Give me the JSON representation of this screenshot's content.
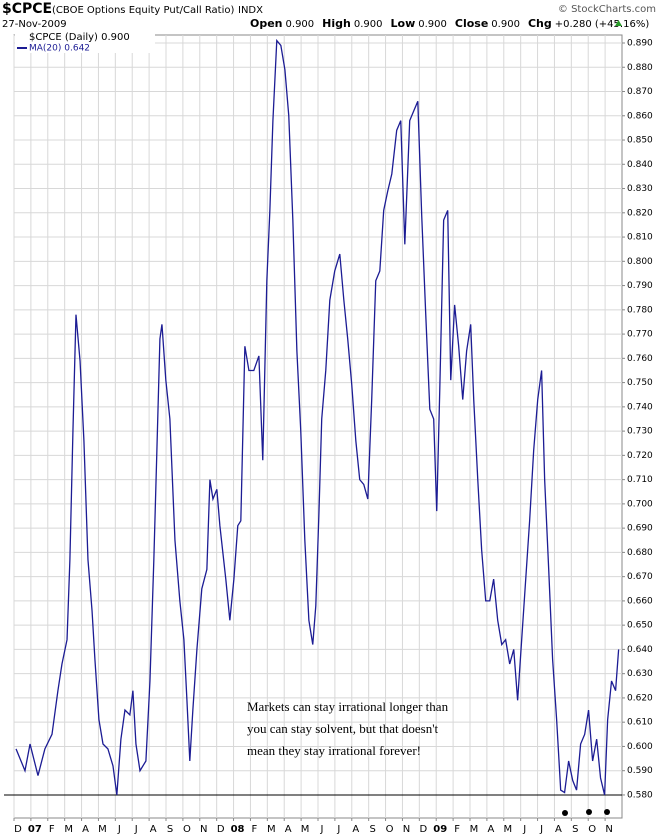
{
  "chart_data": {
    "type": "line",
    "symbol": "$CPCE",
    "title": "(CBOE Options Equity Put/Call Ratio)",
    "exchange": "INDX",
    "date": "27-Nov-2009",
    "source": "© StockCharts.com",
    "quote": [
      {
        "label": "Open",
        "value": "0.900"
      },
      {
        "label": "High",
        "value": "0.900"
      },
      {
        "label": "Low",
        "value": "0.900"
      },
      {
        "label": "Close",
        "value": "0.900"
      },
      {
        "label": "Chg",
        "value": "+0.280 (+45.16%)"
      }
    ],
    "price_label": "$CPCE (Daily) 0.900",
    "annotation": [
      "Markets can stay irrational longer than",
      "you can stay solvent, but that doesn't",
      "mean they stay irrational forever!"
    ],
    "reference_line": 0.58,
    "grid": true,
    "xlim": [
      0,
      36
    ],
    "xticks": [
      {
        "value": 0,
        "label": "D"
      },
      {
        "value": 1,
        "label": "07"
      },
      {
        "value": 2,
        "label": "F"
      },
      {
        "value": 3,
        "label": "M"
      },
      {
        "value": 4,
        "label": "A"
      },
      {
        "value": 5,
        "label": "M"
      },
      {
        "value": 6,
        "label": "J"
      },
      {
        "value": 7,
        "label": "J"
      },
      {
        "value": 8,
        "label": "A"
      },
      {
        "value": 9,
        "label": "S"
      },
      {
        "value": 10,
        "label": "O"
      },
      {
        "value": 11,
        "label": "N"
      },
      {
        "value": 12,
        "label": "D"
      },
      {
        "value": 13,
        "label": "08"
      },
      {
        "value": 14,
        "label": "F"
      },
      {
        "value": 15,
        "label": "M"
      },
      {
        "value": 16,
        "label": "A"
      },
      {
        "value": 17,
        "label": "M"
      },
      {
        "value": 18,
        "label": "J"
      },
      {
        "value": 19,
        "label": "J"
      },
      {
        "value": 20,
        "label": "A"
      },
      {
        "value": 21,
        "label": "S"
      },
      {
        "value": 22,
        "label": "O"
      },
      {
        "value": 23,
        "label": "N"
      },
      {
        "value": 24,
        "label": "D"
      },
      {
        "value": 25,
        "label": "09"
      },
      {
        "value": 26,
        "label": "F"
      },
      {
        "value": 27,
        "label": "M"
      },
      {
        "value": 28,
        "label": "A"
      },
      {
        "value": 29,
        "label": "M"
      },
      {
        "value": 30,
        "label": "J"
      },
      {
        "value": 31,
        "label": "J"
      },
      {
        "value": 32,
        "label": "A"
      },
      {
        "value": 33,
        "label": "S"
      },
      {
        "value": 34,
        "label": "O"
      },
      {
        "value": 35,
        "label": "N"
      }
    ],
    "ylim": [
      0.5705,
      0.8933
    ],
    "yticks": [
      {
        "value": 0.58,
        "label": "0.580"
      },
      {
        "value": 0.59,
        "label": "0.590"
      },
      {
        "value": 0.6,
        "label": "0.600"
      },
      {
        "value": 0.61,
        "label": "0.610"
      },
      {
        "value": 0.62,
        "label": "0.620"
      },
      {
        "value": 0.63,
        "label": "0.630"
      },
      {
        "value": 0.64,
        "label": "0.640"
      },
      {
        "value": 0.65,
        "label": "0.650"
      },
      {
        "value": 0.66,
        "label": "0.660"
      },
      {
        "value": 0.67,
        "label": "0.670"
      },
      {
        "value": 0.68,
        "label": "0.680"
      },
      {
        "value": 0.69,
        "label": "0.690"
      },
      {
        "value": 0.7,
        "label": "0.700"
      },
      {
        "value": 0.71,
        "label": "0.710"
      },
      {
        "value": 0.72,
        "label": "0.720"
      },
      {
        "value": 0.73,
        "label": "0.730"
      },
      {
        "value": 0.74,
        "label": "0.740"
      },
      {
        "value": 0.75,
        "label": "0.750"
      },
      {
        "value": 0.76,
        "label": "0.760"
      },
      {
        "value": 0.77,
        "label": "0.770"
      },
      {
        "value": 0.78,
        "label": "0.780"
      },
      {
        "value": 0.79,
        "label": "0.790"
      },
      {
        "value": 0.8,
        "label": "0.800"
      },
      {
        "value": 0.81,
        "label": "0.810"
      },
      {
        "value": 0.82,
        "label": "0.820"
      },
      {
        "value": 0.83,
        "label": "0.830"
      },
      {
        "value": 0.84,
        "label": "0.840"
      },
      {
        "value": 0.85,
        "label": "0.850"
      },
      {
        "value": 0.86,
        "label": "0.860"
      },
      {
        "value": 0.87,
        "label": "0.870"
      },
      {
        "value": 0.88,
        "label": "0.880"
      },
      {
        "value": 0.89,
        "label": "0.890"
      }
    ],
    "series": [
      {
        "name": "MA(20) 0.642",
        "color": "#1c1c94",
        "x": [
          0.12,
          0.65,
          0.95,
          1.42,
          1.83,
          2.25,
          2.6,
          2.84,
          3.14,
          3.31,
          3.49,
          3.67,
          3.91,
          4.14,
          4.38,
          4.62,
          4.79,
          5.03,
          5.27,
          5.56,
          5.86,
          6.09,
          6.33,
          6.57,
          6.86,
          7.04,
          7.22,
          7.46,
          7.81,
          8.05,
          8.28,
          8.46,
          8.64,
          8.76,
          8.99,
          9.23,
          9.53,
          9.82,
          10.06,
          10.24,
          10.41,
          10.59,
          10.83,
          11.12,
          11.42,
          11.6,
          11.78,
          12.01,
          12.19,
          12.54,
          12.78,
          13.02,
          13.25,
          13.43,
          13.67,
          13.91,
          14.2,
          14.5,
          14.73,
          14.97,
          15.15,
          15.33,
          15.56,
          15.8,
          16.04,
          16.27,
          16.51,
          16.75,
          16.98,
          17.22,
          17.46,
          17.69,
          17.87,
          18.05,
          18.22,
          18.46,
          18.7,
          18.99,
          19.29,
          19.53,
          19.76,
          20.0,
          20.24,
          20.47,
          20.71,
          20.95,
          21.18,
          21.42,
          21.66,
          21.89,
          22.13,
          22.37,
          22.66,
          22.9,
          23.14,
          23.43,
          23.67,
          23.91,
          24.14,
          24.38,
          24.62,
          24.85,
          25.03,
          25.21,
          25.44,
          25.68,
          25.86,
          26.09,
          26.33,
          26.57,
          26.8,
          27.04,
          27.22,
          27.46,
          27.69,
          27.93,
          28.17,
          28.4,
          28.64,
          28.88,
          29.11,
          29.35,
          29.59,
          29.82,
          30.06,
          30.3,
          30.53,
          30.77,
          31.01,
          31.24,
          31.42,
          31.66,
          31.89,
          32.13,
          32.37,
          32.6,
          32.84,
          33.08,
          33.31,
          33.55,
          33.79,
          34.02,
          34.26,
          34.5,
          34.73,
          34.97,
          35.15,
          35.38,
          35.62,
          35.8
        ],
        "values": [
          0.599,
          0.59,
          0.601,
          0.588,
          0.599,
          0.605,
          0.623,
          0.634,
          0.644,
          0.677,
          0.73,
          0.778,
          0.759,
          0.726,
          0.677,
          0.656,
          0.636,
          0.611,
          0.601,
          0.599,
          0.592,
          0.58,
          0.603,
          0.615,
          0.613,
          0.623,
          0.601,
          0.59,
          0.594,
          0.627,
          0.677,
          0.722,
          0.768,
          0.774,
          0.751,
          0.735,
          0.685,
          0.66,
          0.644,
          0.619,
          0.594,
          0.615,
          0.64,
          0.665,
          0.673,
          0.71,
          0.702,
          0.706,
          0.691,
          0.669,
          0.652,
          0.669,
          0.691,
          0.693,
          0.765,
          0.755,
          0.755,
          0.761,
          0.718,
          0.792,
          0.821,
          0.858,
          0.891,
          0.889,
          0.879,
          0.86,
          0.817,
          0.763,
          0.73,
          0.685,
          0.652,
          0.642,
          0.658,
          0.695,
          0.735,
          0.755,
          0.784,
          0.796,
          0.803,
          0.784,
          0.768,
          0.749,
          0.726,
          0.71,
          0.708,
          0.702,
          0.743,
          0.792,
          0.796,
          0.821,
          0.829,
          0.836,
          0.854,
          0.858,
          0.807,
          0.858,
          0.862,
          0.866,
          0.819,
          0.778,
          0.739,
          0.735,
          0.697,
          0.747,
          0.817,
          0.821,
          0.751,
          0.782,
          0.765,
          0.743,
          0.763,
          0.774,
          0.743,
          0.71,
          0.681,
          0.66,
          0.66,
          0.669,
          0.652,
          0.642,
          0.644,
          0.634,
          0.64,
          0.619,
          0.644,
          0.669,
          0.693,
          0.722,
          0.743,
          0.755,
          0.71,
          0.673,
          0.636,
          0.611,
          0.582,
          0.581,
          0.594,
          0.586,
          0.582,
          0.601,
          0.605,
          0.615,
          0.594,
          0.603,
          0.587,
          0.58,
          0.611,
          0.627,
          0.623,
          0.64
        ]
      }
    ]
  }
}
